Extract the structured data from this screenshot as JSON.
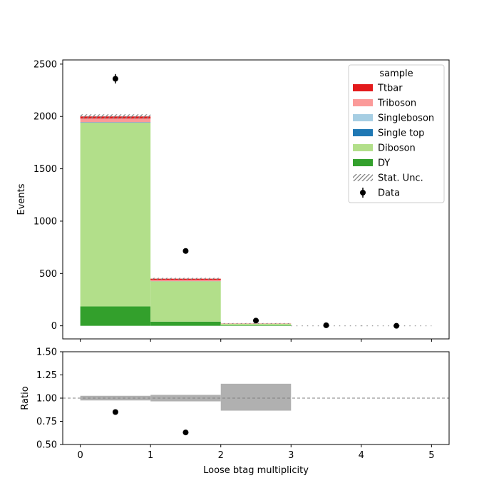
{
  "chart_data": {
    "type": "bar",
    "stacked": true,
    "main": {
      "ylabel": "Events",
      "ylim": [
        -125,
        2540
      ],
      "yticks": [
        0,
        500,
        1000,
        1500,
        2000,
        2500
      ],
      "bins": [
        [
          0,
          1
        ],
        [
          1,
          2
        ],
        [
          2,
          3
        ],
        [
          3,
          4
        ],
        [
          4,
          5
        ]
      ],
      "series": [
        {
          "name": "DY",
          "color": "#33a02c",
          "values": [
            185,
            40,
            5,
            0,
            0
          ]
        },
        {
          "name": "Diboson",
          "color": "#b2df8a",
          "values": [
            1755,
            385,
            15,
            0,
            0
          ]
        },
        {
          "name": "Single top",
          "color": "#1f78b4",
          "values": [
            3,
            1,
            0,
            0,
            0
          ]
        },
        {
          "name": "Singleboson",
          "color": "#a6cee3",
          "values": [
            2,
            0,
            0,
            0,
            0
          ]
        },
        {
          "name": "Triboson",
          "color": "#fb9a99",
          "values": [
            35,
            12,
            2,
            0,
            0
          ]
        },
        {
          "name": "Ttbar",
          "color": "#e31a1c",
          "values": [
            20,
            12,
            1,
            0,
            0
          ]
        }
      ],
      "stat_unc": [
        20,
        8,
        3,
        0,
        0
      ],
      "data": {
        "name": "Data",
        "x": [
          0.5,
          1.5,
          2.5,
          3.5,
          4.5
        ],
        "y": [
          2360,
          715,
          50,
          5,
          0
        ],
        "err": [
          45,
          25,
          7,
          2,
          0
        ]
      },
      "legend": {
        "title": "sample",
        "placement": "upper right",
        "entries": [
          "Ttbar",
          "Triboson",
          "Singleboson",
          "Single top",
          "Diboson",
          "DY",
          "Stat. Unc.",
          "Data"
        ]
      }
    },
    "ratio": {
      "xlabel": "Loose btag multiplicity",
      "ylabel": "Ratio",
      "ylim": [
        0.5,
        1.5
      ],
      "yticks": [
        "0.50",
        "0.75",
        "1.00",
        "1.25",
        "1.50"
      ],
      "reference_line": 1.0,
      "unc_bands": [
        [
          0.975,
          1.025
        ],
        [
          0.965,
          1.035
        ],
        [
          0.865,
          1.155
        ]
      ],
      "points": {
        "x": [
          0.5,
          1.5
        ],
        "y": [
          0.85,
          0.63
        ]
      }
    },
    "xlim": [
      -0.25,
      5.25
    ],
    "xticks": [
      "0",
      "1",
      "2",
      "3",
      "4",
      "5"
    ]
  }
}
